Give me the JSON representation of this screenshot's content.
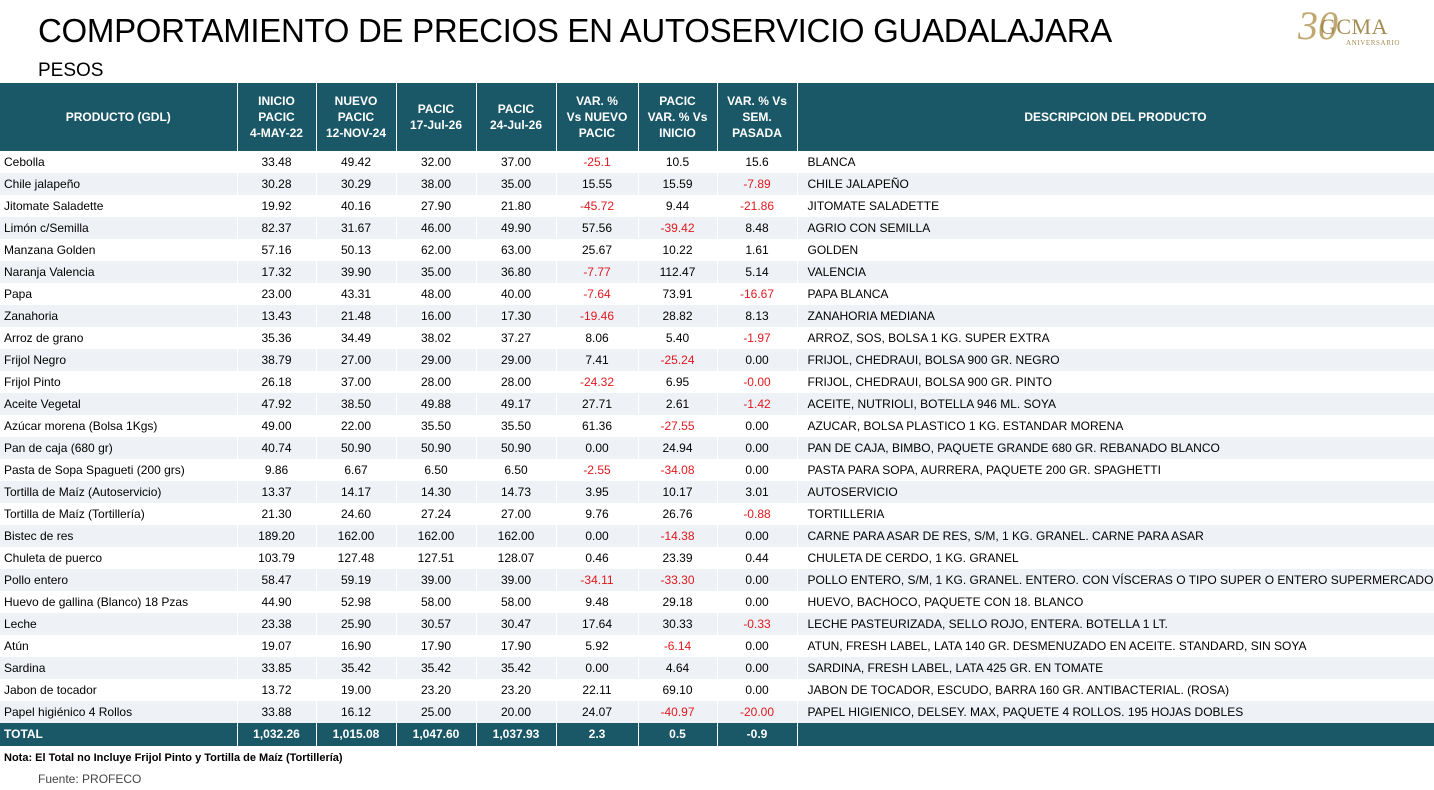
{
  "header": {
    "title": "COMPORTAMIENTO DE PRECIOS EN AUTOSERVICIO GUADALAJARA",
    "subtitle": "PESOS",
    "logo": {
      "number": "30",
      "name": "GCMA",
      "tagline": "ANIVERSARIO"
    }
  },
  "table": {
    "columns": [
      [
        "PRODUCTO (GDL)"
      ],
      [
        "INICIO",
        "PACIC",
        "4-MAY-22"
      ],
      [
        "NUEVO",
        "PACIC",
        "12-NOV-24"
      ],
      [
        "PACIC",
        "17-Jul-26"
      ],
      [
        "PACIC",
        "24-Jul-26"
      ],
      [
        "VAR. %",
        "Vs  NUEVO",
        "PACIC"
      ],
      [
        "PACIC",
        "VAR. % Vs",
        "INICIO"
      ],
      [
        "VAR. % Vs",
        "SEM.",
        "PASADA"
      ],
      [
        "DESCRIPCION DEL PRODUCTO"
      ]
    ],
    "rows": [
      [
        "Cebolla",
        "33.48",
        "49.42",
        "32.00",
        "37.00",
        "-25.1",
        "10.5",
        "15.6",
        "BLANCA"
      ],
      [
        "Chile jalapeño",
        "30.28",
        "30.29",
        "38.00",
        "35.00",
        "15.55",
        "15.59",
        "-7.89",
        "CHILE JALAPEÑO"
      ],
      [
        "Jitomate Saladette",
        "19.92",
        "40.16",
        "27.90",
        "21.80",
        "-45.72",
        "9.44",
        "-21.86",
        "JITOMATE SALADETTE"
      ],
      [
        "Limón c/Semilla",
        "82.37",
        "31.67",
        "46.00",
        "49.90",
        "57.56",
        "-39.42",
        "8.48",
        "AGRIO CON SEMILLA"
      ],
      [
        "Manzana Golden",
        "57.16",
        "50.13",
        "62.00",
        "63.00",
        "25.67",
        "10.22",
        "1.61",
        "GOLDEN"
      ],
      [
        "Naranja Valencia",
        "17.32",
        "39.90",
        "35.00",
        "36.80",
        "-7.77",
        "112.47",
        "5.14",
        "VALENCIA"
      ],
      [
        "Papa",
        "23.00",
        "43.31",
        "48.00",
        "40.00",
        "-7.64",
        "73.91",
        "-16.67",
        "PAPA BLANCA"
      ],
      [
        "Zanahoria",
        "13.43",
        "21.48",
        "16.00",
        "17.30",
        "-19.46",
        "28.82",
        "8.13",
        "ZANAHORIA MEDIANA"
      ],
      [
        "Arroz de grano",
        "35.36",
        "34.49",
        "38.02",
        "37.27",
        "8.06",
        "5.40",
        "-1.97",
        "ARROZ, SOS, BOLSA 1 KG. SUPER EXTRA"
      ],
      [
        "Frijol Negro",
        "38.79",
        "27.00",
        "29.00",
        "29.00",
        "7.41",
        "-25.24",
        "0.00",
        "FRIJOL, CHEDRAUI, BOLSA 900 GR. NEGRO"
      ],
      [
        "Frijol Pinto",
        "26.18",
        "37.00",
        "28.00",
        "28.00",
        "-24.32",
        "6.95",
        "-0.00",
        "FRIJOL, CHEDRAUI, BOLSA 900 GR. PINTO"
      ],
      [
        "Aceite Vegetal",
        "47.92",
        "38.50",
        "49.88",
        "49.17",
        "27.71",
        "2.61",
        "-1.42",
        "ACEITE, NUTRIOLI, BOTELLA 946 ML. SOYA"
      ],
      [
        "Azúcar morena (Bolsa 1Kgs)",
        "49.00",
        "22.00",
        "35.50",
        "35.50",
        "61.36",
        "-27.55",
        "0.00",
        "AZUCAR, BOLSA PLASTICO 1 KG. ESTANDAR MORENA"
      ],
      [
        "Pan de caja (680 gr)",
        "40.74",
        "50.90",
        "50.90",
        "50.90",
        "0.00",
        "24.94",
        "0.00",
        "PAN DE CAJA, BIMBO, PAQUETE GRANDE 680 GR. REBANADO BLANCO"
      ],
      [
        "Pasta de Sopa Spagueti (200 grs)",
        "9.86",
        "6.67",
        "6.50",
        "6.50",
        "-2.55",
        "-34.08",
        "0.00",
        "PASTA PARA SOPA, AURRERA, PAQUETE 200 GR. SPAGHETTI"
      ],
      [
        "Tortilla de Maíz (Autoservicio)",
        "13.37",
        "14.17",
        "14.30",
        "14.73",
        "3.95",
        "10.17",
        "3.01",
        "AUTOSERVICIO"
      ],
      [
        "Tortilla de Maíz (Tortillería)",
        "21.30",
        "24.60",
        "27.24",
        "27.00",
        "9.76",
        "26.76",
        "-0.88",
        "TORTILLERIA"
      ],
      [
        "Bistec de res",
        "189.20",
        "162.00",
        "162.00",
        "162.00",
        "0.00",
        "-14.38",
        "0.00",
        "CARNE PARA ASAR DE RES, S/M, 1 KG. GRANEL. CARNE PARA ASAR"
      ],
      [
        "Chuleta de puerco",
        "103.79",
        "127.48",
        "127.51",
        "128.07",
        "0.46",
        "23.39",
        "0.44",
        "CHULETA DE CERDO, 1 KG. GRANEL"
      ],
      [
        "Pollo entero",
        "58.47",
        "59.19",
        "39.00",
        "39.00",
        "-34.11",
        "-33.30",
        "0.00",
        "POLLO ENTERO, S/M, 1 KG. GRANEL. ENTERO. CON VÍSCERAS O TIPO SUPER O ENTERO SUPERMERCADO"
      ],
      [
        "Huevo de gallina (Blanco) 18 Pzas",
        "44.90",
        "52.98",
        "58.00",
        "58.00",
        "9.48",
        "29.18",
        "0.00",
        "HUEVO, BACHOCO, PAQUETE CON 18. BLANCO"
      ],
      [
        "Leche",
        "23.38",
        "25.90",
        "30.57",
        "30.47",
        "17.64",
        "30.33",
        "-0.33",
        "LECHE PASTEURIZADA, SELLO ROJO, ENTERA. BOTELLA 1 LT."
      ],
      [
        "Atún",
        "19.07",
        "16.90",
        "17.90",
        "17.90",
        "5.92",
        "-6.14",
        "0.00",
        "ATUN, FRESH LABEL, LATA 140 GR. DESMENUZADO EN ACEITE. STANDARD, SIN SOYA"
      ],
      [
        "Sardina",
        "33.85",
        "35.42",
        "35.42",
        "35.42",
        "0.00",
        "4.64",
        "0.00",
        "SARDINA, FRESH LABEL, LATA 425 GR. EN TOMATE"
      ],
      [
        "Jabon de tocador",
        "13.72",
        "19.00",
        "23.20",
        "23.20",
        "22.11",
        "69.10",
        "0.00",
        "JABON DE TOCADOR, ESCUDO, BARRA 160 GR. ANTIBACTERIAL. (ROSA)"
      ],
      [
        "Papel higiénico 4 Rollos",
        "33.88",
        "16.12",
        "25.00",
        "20.00",
        "24.07",
        "-40.97",
        "-20.00",
        "PAPEL HIGIENICO, DELSEY. MAX, PAQUETE 4 ROLLOS. 195 HOJAS DOBLES"
      ]
    ],
    "total": [
      "TOTAL",
      "1,032.26",
      "1,015.08",
      "1,047.60",
      "1,037.93",
      "2.3",
      "0.5",
      "-0.9",
      ""
    ]
  },
  "footer": {
    "note": "Nota: El Total no Incluye Frijol Pinto y Tortilla de Maíz (Tortillería)",
    "source": "Fuente: PROFECO"
  },
  "colors": {
    "header_bg": "#1b5867",
    "negative": "#e0191f",
    "stripe": "#eef1f5",
    "logo_gold": "#a58c52"
  }
}
